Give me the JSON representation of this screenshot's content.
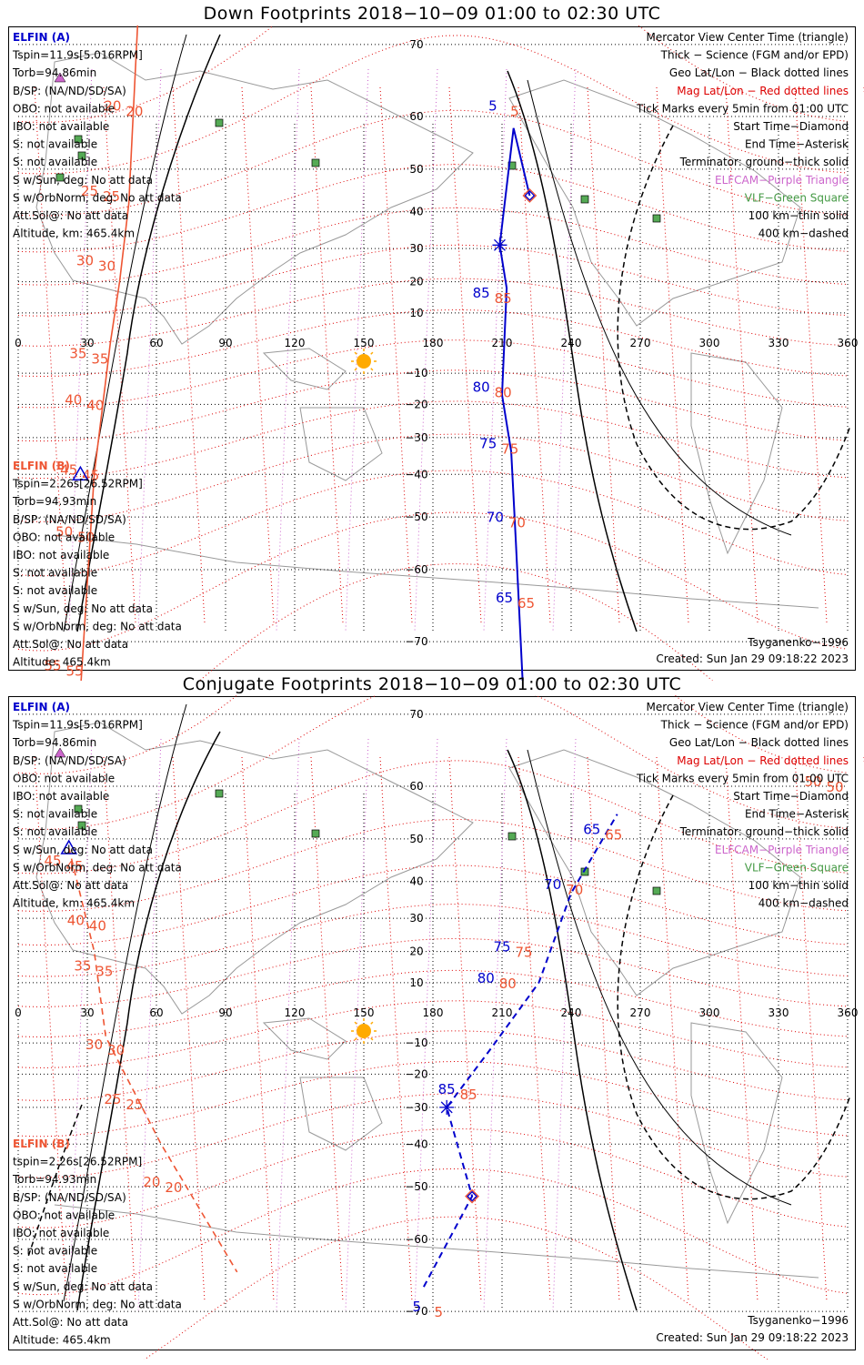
{
  "colors": {
    "elfin_a": "#0000cc",
    "elfin_b": "#ee5533",
    "geo_grid": "#000000",
    "mag_grid": "#dd0000",
    "elfcam": "#cc66cc",
    "vlf": "#449944",
    "sun": "#ffaa00",
    "coast": "#999999"
  },
  "icons": [
    "sun-icon",
    "triangle-icon",
    "diamond-icon",
    "asterisk-icon",
    "vlf-square-icon"
  ],
  "panels": [
    {
      "title": "Down Footprints 2018−10−09 01:00 to 02:30 UTC",
      "left_a": [
        "ELFIN (A)",
        "Tspin=11.9s[5.016RPM]",
        "Torb=94.86min",
        "B/SP: (NA/ND/SD/SA)",
        "OBO: not available",
        "IBO: not available",
        "S: not available",
        "S: not available",
        "S w/Sun, deg: No att data",
        "S w/OrbNorm, deg: No att data",
        "Att.Sol@: No att data",
        "Altitude, km: 465.4km"
      ],
      "left_b": [
        "ELFIN (B)",
        "Tspin=2.26s[26.52RPM]",
        "Torb=94.93min",
        "B/SP: (NA/ND/SD/SA)",
        "OBO: not available",
        "IBO: not available",
        "S: not available",
        "S: not available",
        "S w/Sun, deg: No att data",
        "S w/OrbNorm, deg: No att data",
        "Att.Sol@: No att data",
        "Altitude: 465.4km"
      ],
      "legend": [
        "Mercator View Center Time (triangle)",
        "Thick − Science (FGM and/or EPD)",
        "Geo Lat/Lon − Black dotted lines",
        "Mag Lat/Lon − Red dotted lines",
        "Tick Marks every 5min from 01:00 UTC",
        "Start Time−Diamond",
        "End Time−Asterisk",
        "Terminator: ground−thick solid",
        "ELFCAM−Purple Triangle",
        "VLF−Green Square",
        "100 km−thin solid",
        "400 km−dashed"
      ],
      "model": "Tsyganenko−1996",
      "created": "Created: Sun Jan 29 09:18:22 2023"
    },
    {
      "title": "Conjugate Footprints 2018−10−09 01:00 to 02:30 UTC",
      "left_a": [
        "ELFIN (A)",
        "Tspin=11.9s[5.016RPM]",
        "Torb=94.86min",
        "B/SP: (NA/ND/SD/SA)",
        "OBO: not available",
        "IBO: not available",
        "S: not available",
        "S: not available",
        "S w/Sun, deg: No att data",
        "S w/OrbNorm, deg: No att data",
        "Att.Sol@: No att data",
        "Altitude, km: 465.4km"
      ],
      "left_b": [
        "ELFIN (B)",
        "tspin=2.26s[26.52RPM]",
        "Torb=94.93min",
        "B/SP: (NA/ND/SD/SA)",
        "OBO: not available",
        "IBO: not available",
        "S: not available",
        "S: not available",
        "S w/Sun, deg: No att data",
        "S w/OrbNorm, deg: No att data",
        "Att.Sol@: No att data",
        "Altitude: 465.4km"
      ],
      "legend": [
        "Mercator View Center Time (triangle)",
        "Thick − Science (FGM and/or EPD)",
        "Geo Lat/Lon − Black dotted lines",
        "Mag Lat/Lon − Red dotted lines",
        "Tick Marks every 5min from 01:00 UTC",
        "Start Time−Diamond",
        "End Time−Asterisk",
        "Terminator: ground−thick solid",
        "ELFCAM−Purple Triangle",
        "VLF−Green Square",
        "100 km−thin solid",
        "400 km−dashed"
      ],
      "model": "Tsyganenko−1996",
      "created": "Created: Sun Jan 29 09:18:22 2023"
    }
  ],
  "chart_data": [
    {
      "type": "scatter",
      "title": "Down Footprints 2018−10−09 01:00 to 02:30 UTC",
      "xlim": [
        0,
        360
      ],
      "ylim": [
        -80,
        80
      ],
      "x_ticks": [
        "0",
        "30",
        "60",
        "90",
        "120",
        "150",
        "180",
        "210",
        "240",
        "270",
        "300",
        "330",
        "360"
      ],
      "y_ticks": [
        "70",
        "60",
        "50",
        "40",
        "30",
        "20",
        "10",
        "−10",
        "−20",
        "−30",
        "−40",
        "−50",
        "−60",
        "−70"
      ],
      "series": [
        {
          "name": "ELFIN (A)",
          "points": [
            [
              222,
              44
            ],
            [
              215,
              58
            ],
            [
              209,
              31
            ],
            [
              212,
              18
            ],
            [
              210,
              -17
            ],
            [
              214,
              -34
            ],
            [
              216,
              -55
            ],
            [
              220,
              -78
            ]
          ],
          "labels": [
            {
              "t": "5",
              "p": [
                206,
                61
              ]
            },
            {
              "t": "85",
              "p": [
                201,
                15
              ]
            },
            {
              "t": "80",
              "p": [
                201,
                -16
              ]
            },
            {
              "t": "75",
              "p": [
                204,
                -33
              ]
            },
            {
              "t": "70",
              "p": [
                207,
                -51
              ]
            },
            {
              "t": "65",
              "p": [
                211,
                -65
              ]
            }
          ]
        },
        {
          "name": "ELFIN (B)",
          "points": [
            [
              54,
              80
            ],
            [
              48,
              42
            ],
            [
              44,
              20
            ],
            [
              40,
              0
            ],
            [
              33,
              -40
            ],
            [
              27,
              -75
            ]
          ],
          "labels": [
            {
              "t": "20",
              "p": [
                41,
                61
              ]
            },
            {
              "t": "25",
              "p": [
                31,
                44
              ]
            },
            {
              "t": "30",
              "p": [
                29,
                25
              ]
            },
            {
              "t": "35",
              "p": [
                26,
                -5
              ]
            },
            {
              "t": "40",
              "p": [
                24,
                -20
              ]
            },
            {
              "t": "45",
              "p": [
                22,
                -40
              ]
            },
            {
              "t": "50",
              "p": [
                20,
                -54
              ]
            },
            {
              "t": "55",
              "p": [
                15,
                -73
              ]
            }
          ]
        }
      ],
      "start_time_diamond": [
        222,
        44
      ],
      "end_time_asterisk": [
        209,
        31
      ],
      "center_time_triangle": [
        27,
        -40
      ]
    },
    {
      "type": "scatter",
      "title": "Conjugate Footprints 2018−10−09 01:00 to 02:30 UTC",
      "xlim": [
        0,
        360
      ],
      "ylim": [
        -80,
        80
      ],
      "x_ticks": [
        "0",
        "30",
        "60",
        "90",
        "120",
        "150",
        "180",
        "210",
        "240",
        "270",
        "300",
        "330",
        "360"
      ],
      "y_ticks": [
        "70",
        "60",
        "50",
        "40",
        "30",
        "20",
        "10",
        "−10",
        "−20",
        "−30",
        "−40",
        "−50",
        "−60",
        "−70"
      ],
      "series": [
        {
          "name": "ELFIN (A)",
          "points": [
            [
              176,
              -67
            ],
            [
              197,
              -52
            ],
            [
              186,
              -30
            ],
            [
              205,
              -12
            ],
            [
              226,
              10
            ],
            [
              240,
              37
            ],
            [
              260,
              55
            ]
          ],
          "labels": [
            {
              "t": "5",
              "p": [
                173,
                -70
              ]
            },
            {
              "t": "85",
              "p": [
                186,
                -26
              ]
            },
            {
              "t": "80",
              "p": [
                203,
                10
              ]
            },
            {
              "t": "75",
              "p": [
                210,
                20
              ]
            },
            {
              "t": "70",
              "p": [
                232,
                38
              ]
            },
            {
              "t": "65",
              "p": [
                249,
                51
              ]
            }
          ]
        },
        {
          "name": "ELFIN (B)",
          "points": [
            [
              22,
              48
            ],
            [
              33,
              20
            ],
            [
              38,
              -8
            ],
            [
              62,
              -40
            ],
            [
              95,
              -65
            ]
          ],
          "labels": [
            {
              "t": "45",
              "p": [
                15,
                44
              ]
            },
            {
              "t": "40",
              "p": [
                25,
                28
              ]
            },
            {
              "t": "35",
              "p": [
                28,
                14
              ]
            },
            {
              "t": "30",
              "p": [
                33,
                -12
              ]
            },
            {
              "t": "25",
              "p": [
                41,
                -29
              ]
            },
            {
              "t": "20",
              "p": [
                58,
                -50
              ]
            },
            {
              "t": "50",
              "p": [
                345,
                60
              ]
            }
          ]
        }
      ],
      "start_time_diamond": [
        197,
        -52
      ],
      "end_time_asterisk": [
        186,
        -30
      ],
      "center_time_triangle": [
        22,
        48
      ]
    }
  ]
}
